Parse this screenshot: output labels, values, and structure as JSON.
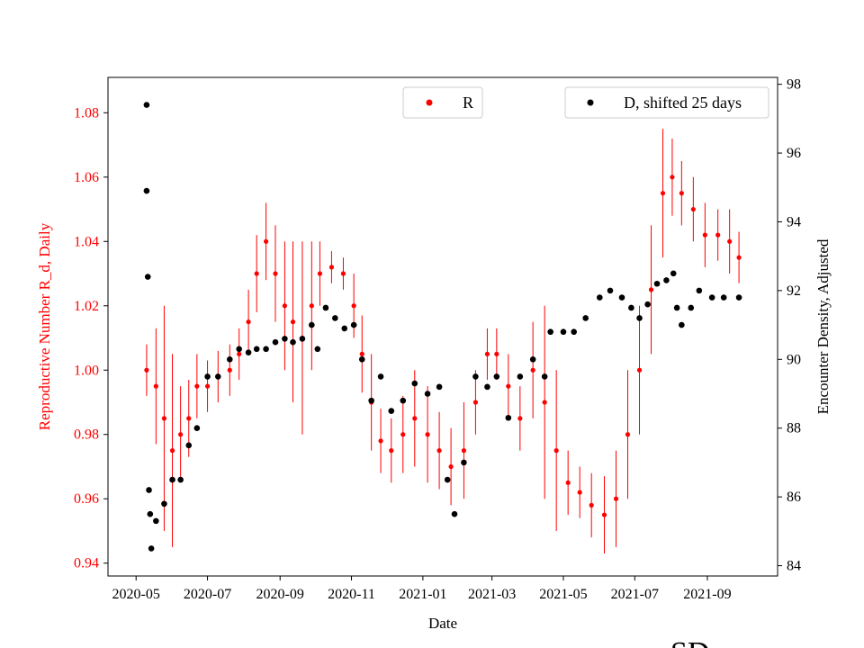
{
  "chart_data": {
    "type": "scatter",
    "xlabel": "Date",
    "ylabel_left": "Reproductive Number R_d, Daily",
    "ylabel_right": "Encounter Density, Adjusted",
    "xlim": [
      "2020-04-07",
      "2021-10-31"
    ],
    "ylim_left": [
      0.936,
      1.091
    ],
    "ylim_right": [
      83.7,
      98.2
    ],
    "x_ticks": [
      "2020-05",
      "2020-07",
      "2020-09",
      "2020-11",
      "2021-01",
      "2021-03",
      "2021-05",
      "2021-07",
      "2021-09"
    ],
    "y_ticks_left": [
      "0.94",
      "0.96",
      "0.98",
      "1.00",
      "1.02",
      "1.04",
      "1.06",
      "1.08"
    ],
    "y_ticks_right": [
      "84",
      "86",
      "88",
      "90",
      "92",
      "94",
      "96",
      "98"
    ],
    "grid": false,
    "corner_text": "SD",
    "colors": {
      "R": "#ff0000",
      "D": "#000000",
      "left_axis": "#ff0000",
      "right_axis": "#000000"
    },
    "legend": [
      {
        "name": "R",
        "color": "#ff0000",
        "placement": "top-center"
      },
      {
        "name": "D, shifted 25 days",
        "color": "#000000",
        "placement": "top-right"
      }
    ],
    "series": [
      {
        "name": "R",
        "axis": "left",
        "marker": "dot",
        "error_bars": true,
        "points": [
          [
            "2020-05-10",
            1.0,
            0.008
          ],
          [
            "2020-05-18",
            0.995,
            0.018
          ],
          [
            "2020-05-25",
            0.985,
            0.035
          ],
          [
            "2020-06-01",
            0.975,
            0.03
          ],
          [
            "2020-06-08",
            0.98,
            0.015
          ],
          [
            "2020-06-15",
            0.985,
            0.012
          ],
          [
            "2020-06-22",
            0.995,
            0.01
          ],
          [
            "2020-07-01",
            0.995,
            0.008
          ],
          [
            "2020-07-10",
            0.998,
            0.008
          ],
          [
            "2020-07-20",
            1.0,
            0.008
          ],
          [
            "2020-07-28",
            1.005,
            0.008
          ],
          [
            "2020-08-05",
            1.015,
            0.01
          ],
          [
            "2020-08-12",
            1.03,
            0.012
          ],
          [
            "2020-08-20",
            1.04,
            0.012
          ],
          [
            "2020-08-28",
            1.03,
            0.015
          ],
          [
            "2020-09-05",
            1.02,
            0.02
          ],
          [
            "2020-09-12",
            1.015,
            0.025
          ],
          [
            "2020-09-20",
            1.01,
            0.03
          ],
          [
            "2020-09-28",
            1.02,
            0.02
          ],
          [
            "2020-10-05",
            1.03,
            0.01
          ],
          [
            "2020-10-15",
            1.032,
            0.005
          ],
          [
            "2020-10-25",
            1.03,
            0.005
          ],
          [
            "2020-11-03",
            1.02,
            0.01
          ],
          [
            "2020-11-10",
            1.005,
            0.012
          ],
          [
            "2020-11-18",
            0.99,
            0.015
          ],
          [
            "2020-11-26",
            0.978,
            0.01
          ],
          [
            "2020-12-05",
            0.975,
            0.01
          ],
          [
            "2020-12-15",
            0.98,
            0.012
          ],
          [
            "2020-12-25",
            0.985,
            0.015
          ],
          [
            "2021-01-05",
            0.98,
            0.015
          ],
          [
            "2021-01-15",
            0.975,
            0.012
          ],
          [
            "2021-01-25",
            0.97,
            0.012
          ],
          [
            "2021-02-05",
            0.975,
            0.015
          ],
          [
            "2021-02-15",
            0.99,
            0.01
          ],
          [
            "2021-02-25",
            1.005,
            0.008
          ],
          [
            "2021-03-05",
            1.005,
            0.008
          ],
          [
            "2021-03-15",
            0.995,
            0.01
          ],
          [
            "2021-03-25",
            0.985,
            0.01
          ],
          [
            "2021-04-05",
            1.0,
            0.015
          ],
          [
            "2021-04-15",
            0.99,
            0.03
          ],
          [
            "2021-04-25",
            0.975,
            0.025
          ],
          [
            "2021-05-05",
            0.965,
            0.01
          ],
          [
            "2021-05-15",
            0.962,
            0.008
          ],
          [
            "2021-05-25",
            0.958,
            0.01
          ],
          [
            "2021-06-05",
            0.955,
            0.012
          ],
          [
            "2021-06-15",
            0.96,
            0.015
          ],
          [
            "2021-06-25",
            0.98,
            0.02
          ],
          [
            "2021-07-05",
            1.0,
            0.02
          ],
          [
            "2021-07-15",
            1.025,
            0.02
          ],
          [
            "2021-07-25",
            1.055,
            0.02
          ],
          [
            "2021-08-02",
            1.06,
            0.012
          ],
          [
            "2021-08-10",
            1.055,
            0.01
          ],
          [
            "2021-08-20",
            1.05,
            0.01
          ],
          [
            "2021-08-30",
            1.042,
            0.01
          ],
          [
            "2021-09-10",
            1.042,
            0.008
          ],
          [
            "2021-09-20",
            1.04,
            0.01
          ],
          [
            "2021-09-28",
            1.035,
            0.008
          ]
        ]
      },
      {
        "name": "D, shifted 25 days",
        "axis": "right",
        "marker": "dot",
        "points": [
          [
            "2020-05-10",
            97.4
          ],
          [
            "2020-05-10",
            94.9
          ],
          [
            "2020-05-11",
            92.4
          ],
          [
            "2020-05-12",
            86.2
          ],
          [
            "2020-05-13",
            85.5
          ],
          [
            "2020-05-14",
            84.5
          ],
          [
            "2020-05-18",
            85.3
          ],
          [
            "2020-05-25",
            85.8
          ],
          [
            "2020-06-01",
            86.5
          ],
          [
            "2020-06-08",
            86.5
          ],
          [
            "2020-06-15",
            87.5
          ],
          [
            "2020-06-22",
            88.0
          ],
          [
            "2020-07-01",
            89.5
          ],
          [
            "2020-07-10",
            89.5
          ],
          [
            "2020-07-20",
            90.0
          ],
          [
            "2020-07-28",
            90.3
          ],
          [
            "2020-08-05",
            90.2
          ],
          [
            "2020-08-12",
            90.3
          ],
          [
            "2020-08-20",
            90.3
          ],
          [
            "2020-08-28",
            90.5
          ],
          [
            "2020-09-05",
            90.6
          ],
          [
            "2020-09-12",
            90.5
          ],
          [
            "2020-09-20",
            90.6
          ],
          [
            "2020-09-28",
            91.0
          ],
          [
            "2020-10-03",
            90.3
          ],
          [
            "2020-10-10",
            91.5
          ],
          [
            "2020-10-18",
            91.2
          ],
          [
            "2020-10-26",
            90.9
          ],
          [
            "2020-11-03",
            91.0
          ],
          [
            "2020-11-10",
            90.0
          ],
          [
            "2020-11-18",
            88.8
          ],
          [
            "2020-11-26",
            89.5
          ],
          [
            "2020-12-05",
            88.5
          ],
          [
            "2020-12-15",
            88.8
          ],
          [
            "2020-12-25",
            89.3
          ],
          [
            "2021-01-05",
            89.0
          ],
          [
            "2021-01-15",
            89.2
          ],
          [
            "2021-01-22",
            86.5
          ],
          [
            "2021-01-28",
            85.5
          ],
          [
            "2021-02-05",
            87.0
          ],
          [
            "2021-02-15",
            89.5
          ],
          [
            "2021-02-25",
            89.2
          ],
          [
            "2021-03-05",
            89.5
          ],
          [
            "2021-03-15",
            88.3
          ],
          [
            "2021-03-25",
            89.5
          ],
          [
            "2021-04-05",
            90.0
          ],
          [
            "2021-04-15",
            89.5
          ],
          [
            "2021-04-20",
            90.8
          ],
          [
            "2021-05-01",
            90.8
          ],
          [
            "2021-05-10",
            90.8
          ],
          [
            "2021-05-20",
            91.2
          ],
          [
            "2021-06-01",
            91.8
          ],
          [
            "2021-06-10",
            92.0
          ],
          [
            "2021-06-20",
            91.8
          ],
          [
            "2021-06-28",
            91.5
          ],
          [
            "2021-07-05",
            91.2
          ],
          [
            "2021-07-12",
            91.6
          ],
          [
            "2021-07-20",
            92.2
          ],
          [
            "2021-07-28",
            92.3
          ],
          [
            "2021-08-03",
            92.5
          ],
          [
            "2021-08-06",
            91.5
          ],
          [
            "2021-08-10",
            91.0
          ],
          [
            "2021-08-18",
            91.5
          ],
          [
            "2021-08-25",
            92.0
          ],
          [
            "2021-09-05",
            91.8
          ],
          [
            "2021-09-15",
            91.8
          ],
          [
            "2021-09-28",
            91.8
          ]
        ]
      }
    ]
  }
}
